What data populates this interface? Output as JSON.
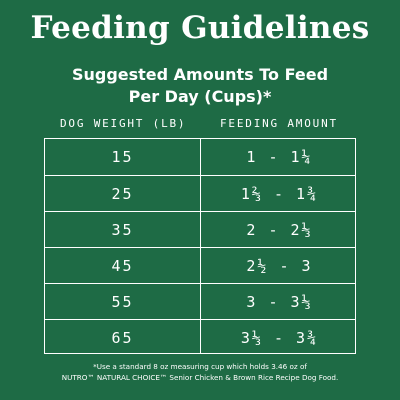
{
  "title": "Feeding Guidelines",
  "subtitle_line1": "Suggested Amounts To Feed",
  "subtitle_line2": "Per Day (Cups)*",
  "columns": {
    "weight": "DOG WEIGHT (LB)",
    "amount": "FEEDING AMOUNT"
  },
  "rows": [
    {
      "weight": "15",
      "amount": "1 - 1¼"
    },
    {
      "weight": "25",
      "amount": "1⅔ - 1¾"
    },
    {
      "weight": "35",
      "amount": "2 - 2⅓"
    },
    {
      "weight": "45",
      "amount": "2½ - 3"
    },
    {
      "weight": "55",
      "amount": "3 - 3⅓"
    },
    {
      "weight": "65",
      "amount": "3⅓ - 3¾"
    }
  ],
  "footnote_line1": "*Use a standard 8 oz measuring cup which holds 3.46 oz of",
  "footnote_line2": "NUTRO™ NATURAL CHOICE™ Senior Chicken & Brown Rice Recipe Dog Food.",
  "colors": {
    "background": "#1e6b45",
    "text": "#ffffff"
  }
}
